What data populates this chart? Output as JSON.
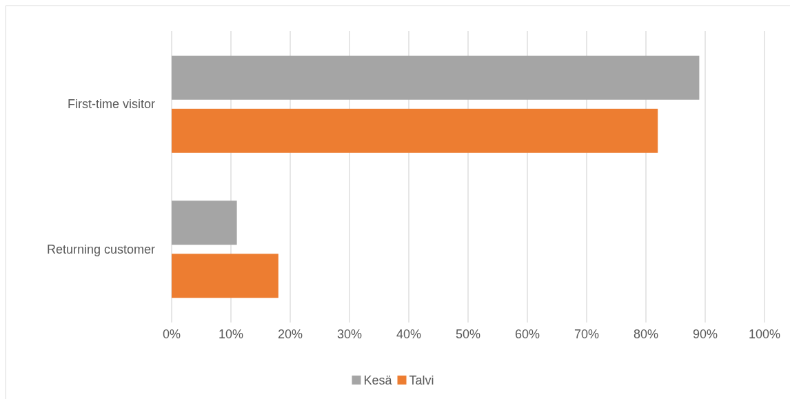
{
  "chart_data": {
    "type": "bar",
    "orientation": "horizontal",
    "categories": [
      "First-time visitor",
      "Returning customer"
    ],
    "series": [
      {
        "name": "Kesä",
        "color": "#a5a5a5",
        "values": [
          89,
          11
        ]
      },
      {
        "name": "Talvi",
        "color": "#ed7d31",
        "values": [
          82,
          18
        ]
      }
    ],
    "xlim": [
      0,
      100
    ],
    "xticks": [
      {
        "value": 0,
        "label": "0%"
      },
      {
        "value": 10,
        "label": "10%"
      },
      {
        "value": 20,
        "label": "20%"
      },
      {
        "value": 30,
        "label": "30%"
      },
      {
        "value": 40,
        "label": "40%"
      },
      {
        "value": 50,
        "label": "50%"
      },
      {
        "value": 60,
        "label": "60%"
      },
      {
        "value": 70,
        "label": "70%"
      },
      {
        "value": 80,
        "label": "80%"
      },
      {
        "value": 90,
        "label": "90%"
      },
      {
        "value": 100,
        "label": "100%"
      }
    ],
    "grid": "x",
    "legend": "bottom"
  }
}
